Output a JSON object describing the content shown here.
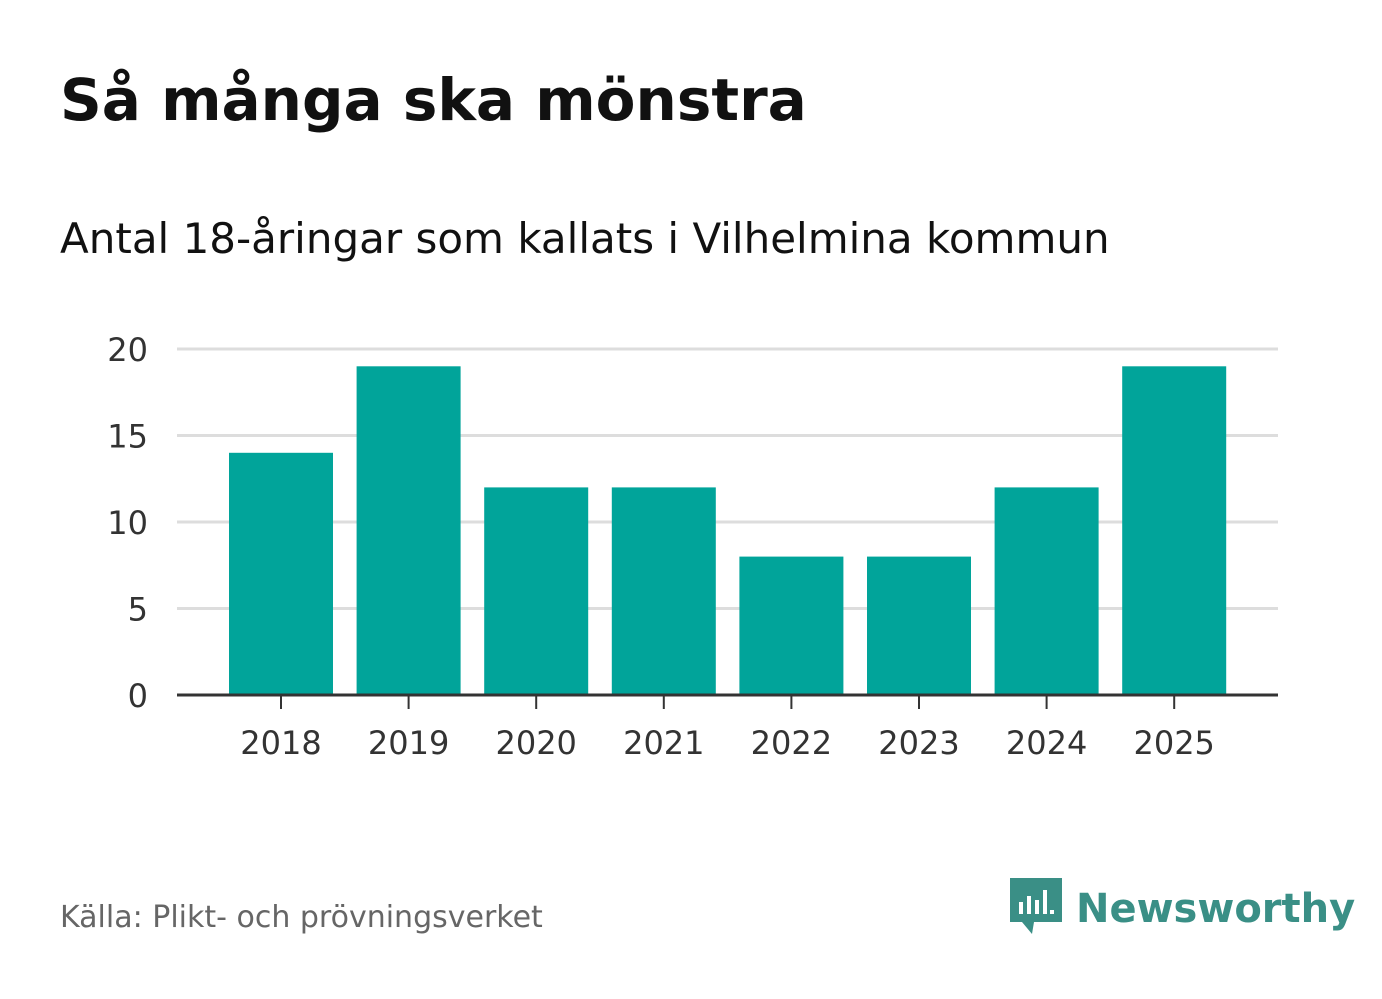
{
  "colors": {
    "bar": "#01a49a",
    "grid": "#dddddd",
    "axis": "#333333",
    "brand": "#3a8f86"
  },
  "chart_data": {
    "type": "bar",
    "title": "Så många ska mönstra",
    "subtitle": "Antal 18-åringar som kallats i Vilhelmina kommun",
    "categories": [
      "2018",
      "2019",
      "2020",
      "2021",
      "2022",
      "2023",
      "2024",
      "2025"
    ],
    "values": [
      14,
      19,
      12,
      12,
      8,
      8,
      12,
      19
    ],
    "yticks": [
      "0",
      "5",
      "10",
      "15",
      "20"
    ],
    "ylim": [
      0,
      20
    ],
    "xlabel": "",
    "ylabel": "",
    "grid": true
  },
  "footer": {
    "source": "Källa: Plikt- och prövningsverket",
    "brand_name": "Newsworthy",
    "brand_icon": "newsworthy-logo-icon"
  }
}
